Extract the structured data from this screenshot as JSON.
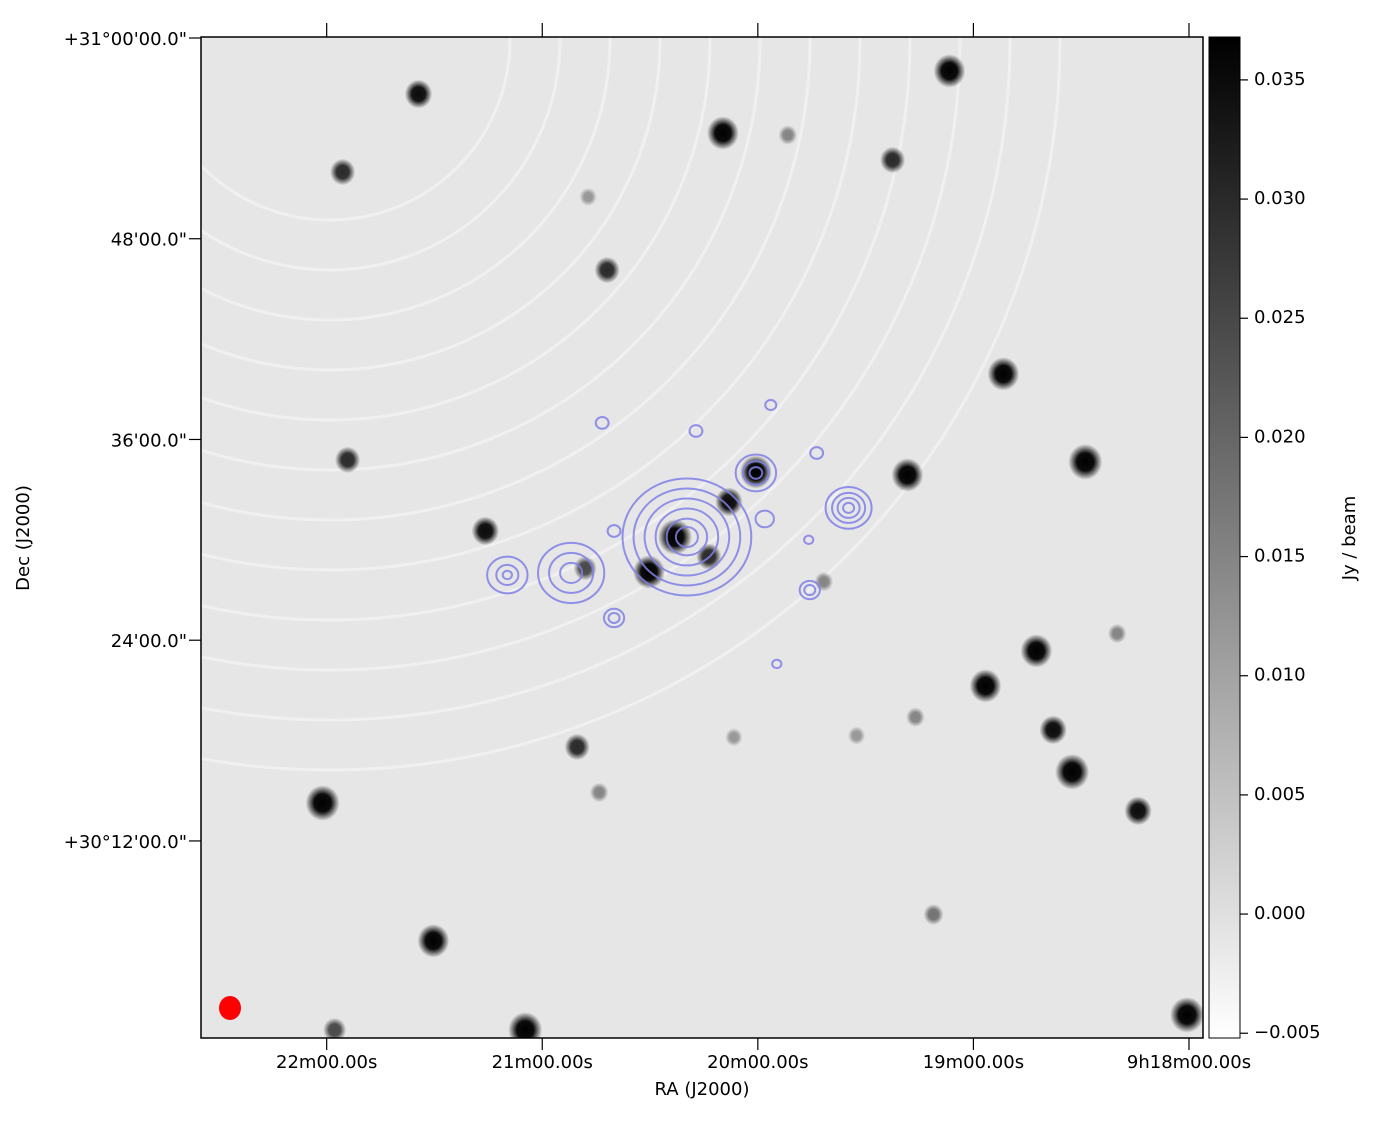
{
  "chart_data": {
    "type": "image",
    "xlabel": "RA (J2000)",
    "ylabel": "Dec (J2000)",
    "xlim": [
      22.583,
      17.935
    ],
    "ylim": [
      0.22,
      60.06
    ],
    "xticks": [
      {
        "value": 22,
        "label": "22m00.00s"
      },
      {
        "value": 21,
        "label": "21m00.00s"
      },
      {
        "value": 20,
        "label": "20m00.00s"
      },
      {
        "value": 19,
        "label": "19m00.00s"
      },
      {
        "value": 18,
        "label": "9h18m00.00s"
      }
    ],
    "yticks": [
      {
        "value": 60,
        "label": "+31°00'00.0\""
      },
      {
        "value": 48,
        "label": "48'00.0\""
      },
      {
        "value": 36,
        "label": "36'00.0\""
      },
      {
        "value": 24,
        "label": "24'00.0\""
      },
      {
        "value": 12,
        "label": "+30°12'00.0\""
      }
    ],
    "colorbar": {
      "label": "Jy / beam",
      "zlim": [
        -0.0052,
        0.0368
      ],
      "ticks": [
        {
          "value": -0.005,
          "label": "−0.005"
        },
        {
          "value": 0,
          "label": "0.000"
        },
        0.005,
        {
          "value": 0.01,
          "label": "0.010"
        },
        0.015,
        {
          "value": 0.02,
          "label": "0.020"
        },
        0.025,
        {
          "value": 0.03,
          "label": "0.030"
        },
        0.035
      ]
    },
    "sources": {
      "x": [
        19.111,
        21.574,
        20.162,
        21.926,
        19.375,
        20.699,
        18.861,
        18.481,
        19.306,
        21.903,
        21.264,
        20.009,
        20.384,
        20.505,
        20.134,
        18.708,
        18.944,
        18.63,
        18.542,
        18.236,
        22.019,
        20.838,
        21.505,
        21.079,
        18.009,
        21.963,
        19.861,
        20.787,
        18.333,
        19.269,
        20.736,
        19.185,
        20.111,
        19.542,
        20.227,
        20.801,
        19.694
      ],
      "y": [
        58.03,
        56.65,
        54.32,
        51.99,
        52.71,
        46.13,
        39.92,
        34.66,
        33.88,
        34.78,
        30.53,
        34.06,
        30.17,
        28.08,
        32.27,
        23.36,
        21.27,
        18.64,
        16.13,
        13.8,
        14.27,
        17.62,
        6.03,
        0.7,
        1.6,
        0.7,
        54.2,
        50.5,
        24.4,
        19.4,
        14.9,
        7.6,
        18.2,
        18.3,
        29.0,
        28.3,
        27.5
      ],
      "values": [
        0.045,
        0.035,
        0.045,
        0.03,
        0.03,
        0.03,
        0.045,
        0.05,
        0.045,
        0.03,
        0.035,
        0.045,
        0.05,
        0.045,
        0.035,
        0.045,
        0.045,
        0.035,
        0.05,
        0.035,
        0.05,
        0.03,
        0.045,
        0.05,
        0.05,
        0.025,
        0.015,
        0.012,
        0.015,
        0.015,
        0.015,
        0.018,
        0.012,
        0.012,
        0.03,
        0.025,
        0.015
      ]
    },
    "contour_color": "#7f7fe6",
    "contours": [
      {
        "x": 20.329,
        "y": 30.17,
        "radii": [
          3.5,
          2.9,
          2.3,
          1.7,
          1.1,
          0.6
        ]
      },
      {
        "x": 19.579,
        "y": 31.91,
        "radii": [
          1.25,
          0.9,
          0.6,
          0.3
        ]
      },
      {
        "x": 20.866,
        "y": 28.02,
        "radii": [
          1.8,
          1.2,
          0.6
        ]
      },
      {
        "x": 21.162,
        "y": 27.9,
        "radii": [
          1.1,
          0.6,
          0.25
        ]
      },
      {
        "x": 20.009,
        "y": 34.0,
        "radii": [
          1.1,
          0.7,
          0.35
        ]
      },
      {
        "x": 20.667,
        "y": 25.33,
        "radii": [
          0.55,
          0.3
        ]
      },
      {
        "x": 19.759,
        "y": 27.0,
        "radii": [
          0.55,
          0.3
        ]
      },
      {
        "x": 19.968,
        "y": 31.25,
        "radii": [
          0.5
        ]
      },
      {
        "x": 20.722,
        "y": 36.99,
        "radii": [
          0.35
        ]
      },
      {
        "x": 20.287,
        "y": 36.51,
        "radii": [
          0.35
        ]
      },
      {
        "x": 19.94,
        "y": 38.06,
        "radii": [
          0.3
        ]
      },
      {
        "x": 19.727,
        "y": 35.19,
        "radii": [
          0.35
        ]
      },
      {
        "x": 19.764,
        "y": 30.0,
        "radii": [
          0.25
        ]
      },
      {
        "x": 19.912,
        "y": 22.58,
        "radii": [
          0.25
        ]
      },
      {
        "x": 20.667,
        "y": 30.53,
        "radii": [
          0.35
        ]
      }
    ]
  }
}
